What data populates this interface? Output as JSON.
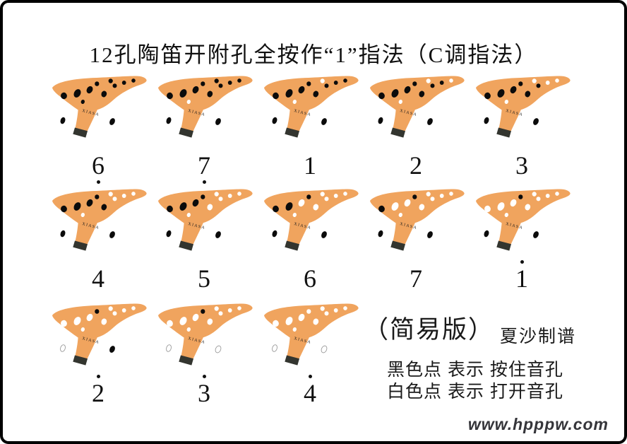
{
  "title": "12孔陶笛开附孔全按作“1”指法（C调指法）",
  "brand": "XIASA",
  "colors": {
    "body": "#F0A45E",
    "hole_covered": "#0B0B0B",
    "hole_open": "#FFFFFF",
    "thumb_open_outline": "#9B9B9B",
    "mouthpiece_tip": "#33352F",
    "label": "#111111"
  },
  "legend": {
    "edition": "（简易版）",
    "credit": "夏沙制谱",
    "black_line": "黑色点 表示 按住音孔",
    "white_line": "白色点 表示 打开音孔"
  },
  "watermark": "www.hpppw.com",
  "hole_ids": [
    "h1",
    "h2",
    "h3",
    "h4",
    "h5",
    "h6",
    "h7",
    "h8",
    "h9",
    "h10",
    "h11",
    "h12"
  ],
  "fingerings": [
    {
      "label": "6",
      "octave": "low",
      "open_holes": []
    },
    {
      "label": "7",
      "octave": "low",
      "open_holes": [
        "h10"
      ]
    },
    {
      "label": "1",
      "octave": "middle",
      "open_holes": [
        "h6",
        "h10"
      ]
    },
    {
      "label": "2",
      "octave": "middle",
      "open_holes": [
        "h6",
        "h9",
        "h10"
      ]
    },
    {
      "label": "3",
      "octave": "middle",
      "open_holes": [
        "h6",
        "h8",
        "h9",
        "h10"
      ]
    },
    {
      "label": "4",
      "octave": "middle",
      "open_holes": [
        "h6",
        "h7",
        "h8",
        "h9",
        "h10"
      ]
    },
    {
      "label": "5",
      "octave": "middle",
      "open_holes": [
        "h4",
        "h6",
        "h7",
        "h8",
        "h9",
        "h10"
      ]
    },
    {
      "label": "6",
      "octave": "middle",
      "open_holes": [
        "h3",
        "h4",
        "h6",
        "h7",
        "h8",
        "h9",
        "h10"
      ]
    },
    {
      "label": "7",
      "octave": "middle",
      "open_holes": [
        "h2",
        "h3",
        "h4",
        "h6",
        "h7",
        "h8",
        "h9",
        "h10"
      ]
    },
    {
      "label": "1",
      "octave": "high",
      "open_holes": [
        "h1",
        "h2",
        "h3",
        "h4",
        "h6",
        "h7",
        "h8",
        "h9",
        "h10"
      ]
    },
    {
      "label": "2",
      "octave": "high",
      "open_holes": [
        "h1",
        "h2",
        "h3",
        "h4",
        "h6",
        "h7",
        "h8",
        "h9",
        "h10",
        "h11"
      ]
    },
    {
      "label": "3",
      "octave": "high",
      "open_holes": [
        "h1",
        "h2",
        "h3",
        "h4",
        "h6",
        "h7",
        "h8",
        "h9",
        "h10",
        "h11",
        "h12"
      ]
    },
    {
      "label": "4",
      "octave": "high",
      "open_holes": [
        "h1",
        "h2",
        "h3",
        "h4",
        "h5",
        "h6",
        "h7",
        "h8",
        "h9",
        "h10",
        "h11",
        "h12"
      ]
    }
  ]
}
